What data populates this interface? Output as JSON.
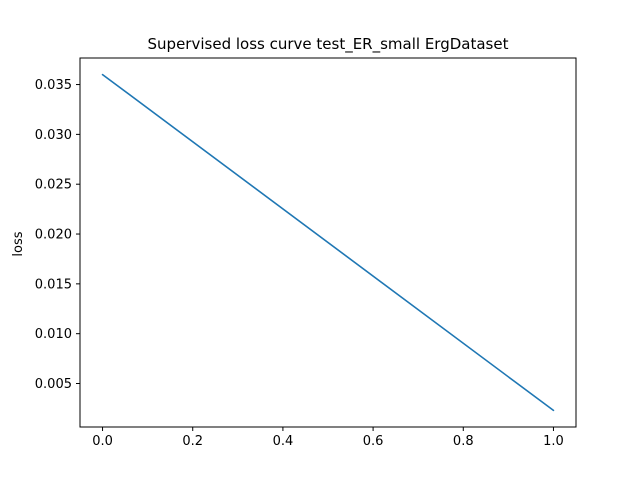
{
  "chart_data": {
    "type": "line",
    "title": "Supervised loss curve test_ER_small ErgDataset",
    "xlabel": "",
    "ylabel": "loss",
    "xlim": [
      -0.05,
      1.05
    ],
    "ylim": [
      0.000636,
      0.037664
    ],
    "x_ticks": [
      0.0,
      0.2,
      0.4,
      0.6,
      0.8,
      1.0
    ],
    "x_tick_labels": [
      "0.0",
      "0.2",
      "0.4",
      "0.6",
      "0.8",
      "1.0"
    ],
    "y_ticks": [
      0.005,
      0.01,
      0.015,
      0.02,
      0.025,
      0.03,
      0.035
    ],
    "y_tick_labels": [
      "0.005",
      "0.010",
      "0.015",
      "0.020",
      "0.025",
      "0.030",
      "0.035"
    ],
    "grid": false,
    "series": [
      {
        "color": "#1f77b4",
        "x": [
          0.0,
          1.0
        ],
        "y": [
          0.036,
          0.0023
        ]
      }
    ]
  }
}
